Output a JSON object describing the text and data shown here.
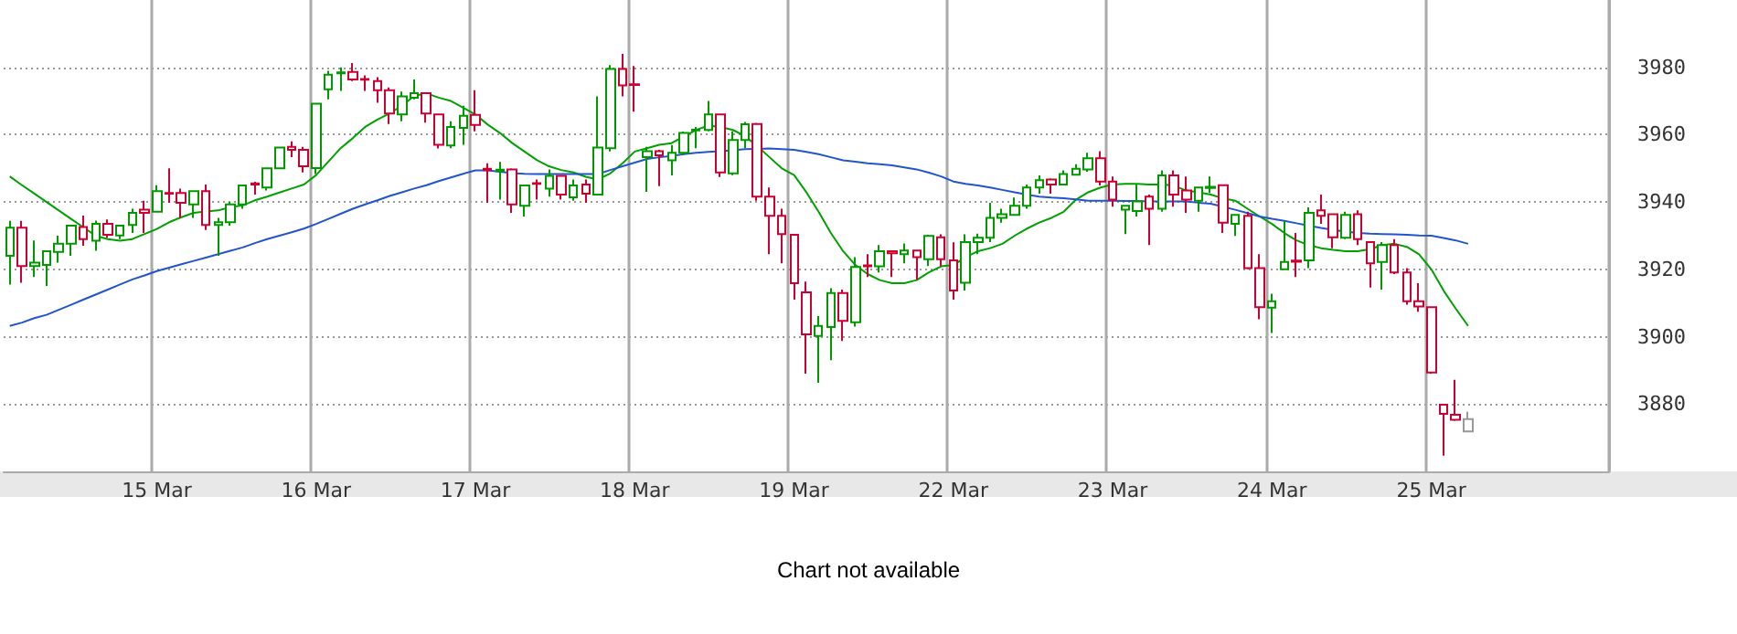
{
  "chart_data": {
    "type": "candlestick",
    "categories": [
      null,
      null,
      null,
      null,
      null,
      null,
      null,
      null,
      null,
      null,
      null,
      null,
      "15 Mar",
      null,
      null,
      null,
      null,
      null,
      null,
      null,
      null,
      null,
      null,
      null,
      null,
      "16 Mar",
      null,
      null,
      null,
      null,
      null,
      null,
      null,
      null,
      null,
      null,
      null,
      null,
      "17 Mar",
      null,
      null,
      null,
      null,
      null,
      null,
      null,
      null,
      null,
      null,
      null,
      null,
      "18 Mar",
      null,
      null,
      null,
      null,
      null,
      null,
      null,
      null,
      null,
      null,
      null,
      null,
      "19 Mar",
      null,
      null,
      null,
      null,
      null,
      null,
      null,
      null,
      null,
      null,
      null,
      null,
      "22 Mar",
      null,
      null,
      null,
      null,
      null,
      null,
      null,
      null,
      null,
      null,
      null,
      null,
      "23 Mar",
      null,
      null,
      null,
      null,
      null,
      null,
      null,
      null,
      null,
      null,
      null,
      null,
      "24 Mar",
      null,
      null,
      null,
      null,
      null,
      null,
      null,
      null,
      null,
      null,
      null,
      null,
      "25 Mar",
      null,
      null,
      null
    ],
    "ohlc": [
      [
        3924,
        3934.4,
        3915.5,
        3932.4
      ],
      [
        3932.4,
        3934.4,
        3916,
        3921
      ],
      [
        3921,
        3928.6,
        3917.7,
        3922
      ],
      [
        3921.3,
        3925.4,
        3915.1,
        3925.4
      ],
      [
        3925.2,
        3930,
        3922,
        3927.6
      ],
      [
        3927.6,
        3933,
        3924,
        3933
      ],
      [
        3932.6,
        3936,
        3927,
        3929
      ],
      [
        3928.5,
        3934.5,
        3925.5,
        3933.5
      ],
      [
        3933.5,
        3934.8,
        3929.4,
        3930.3
      ],
      [
        3930.1,
        3933,
        3929,
        3933
      ],
      [
        3933.2,
        3938,
        3930.8,
        3936.8
      ],
      [
        3937.7,
        3940.4,
        3930.8,
        3936.8
      ],
      [
        3937.1,
        3945,
        3937,
        3943.2
      ],
      [
        3942.7,
        3950,
        3939.8,
        3942.5
      ],
      [
        3942.7,
        3944,
        3935.3,
        3939.8
      ],
      [
        3939.3,
        3943.2,
        3935.3,
        3943.2
      ],
      [
        3943.2,
        3945.2,
        3931.7,
        3933.2
      ],
      [
        3933.2,
        3935.3,
        3924,
        3934
      ],
      [
        3934,
        3940,
        3933,
        3939.3
      ],
      [
        3939.3,
        3945,
        3938,
        3944.9
      ],
      [
        3945.5,
        3946,
        3942.2,
        3945.2
      ],
      [
        3944.3,
        3950,
        3943.4,
        3950
      ],
      [
        3950,
        3956.2,
        3950,
        3956.2
      ],
      [
        3956.4,
        3958,
        3953.3,
        3955.5
      ],
      [
        3955.5,
        3956.4,
        3948.8,
        3950.6
      ],
      [
        3950.1,
        3969.2,
        3948.3,
        3969.2
      ],
      [
        3973.5,
        3979,
        3970.5,
        3977.8
      ],
      [
        3978.2,
        3980,
        3973,
        3978.5
      ],
      [
        3978.6,
        3981.3,
        3975.9,
        3976.4
      ],
      [
        3976.5,
        3977.6,
        3973,
        3976.3
      ],
      [
        3975.9,
        3977.1,
        3969.5,
        3973.2
      ],
      [
        3973.2,
        3974,
        3963.2,
        3966.3
      ],
      [
        3966,
        3972.8,
        3964,
        3971.4
      ],
      [
        3971,
        3976.4,
        3970.5,
        3972.3
      ],
      [
        3972.3,
        3972.3,
        3963.6,
        3966.3
      ],
      [
        3966,
        3966,
        3955.9,
        3957
      ],
      [
        3956.8,
        3964,
        3956,
        3962.3
      ],
      [
        3962,
        3968.6,
        3957,
        3965.6
      ],
      [
        3965.9,
        3973.2,
        3961,
        3962.9
      ],
      [
        3949.9,
        3951.5,
        3939.8,
        3949.5
      ],
      [
        3949.2,
        3951.9,
        3940.7,
        3949.6
      ],
      [
        3949.7,
        3950,
        3936.8,
        3939.3
      ],
      [
        3938.9,
        3945,
        3935.7,
        3944.9
      ],
      [
        3945.6,
        3946.7,
        3940.7,
        3945.4
      ],
      [
        3944,
        3949.7,
        3941.6,
        3947.8
      ],
      [
        3947.8,
        3948,
        3940.7,
        3942.2
      ],
      [
        3941.4,
        3946.7,
        3940.4,
        3944.9
      ],
      [
        3945.2,
        3946.7,
        3939.8,
        3942.5
      ],
      [
        3942.2,
        3971.4,
        3942,
        3956.2
      ],
      [
        3956,
        3980.7,
        3955,
        3979.5
      ],
      [
        3979.5,
        3984,
        3971.4,
        3974.6
      ],
      [
        3975,
        3980.4,
        3966.8,
        3974.8
      ],
      [
        3953.3,
        3956.4,
        3943,
        3955.1
      ],
      [
        3955.1,
        3955.5,
        3944.7,
        3953.9
      ],
      [
        3952.4,
        3956.9,
        3947.9,
        3954.6
      ],
      [
        3954.6,
        3960.9,
        3954,
        3960.5
      ],
      [
        3961.3,
        3962.3,
        3956,
        3961.5
      ],
      [
        3961.4,
        3970,
        3961,
        3966
      ],
      [
        3966,
        3966,
        3947.4,
        3948.8
      ],
      [
        3948.5,
        3961,
        3948,
        3958.4
      ],
      [
        3958.4,
        3963.8,
        3956,
        3963.1
      ],
      [
        3963.2,
        3963.5,
        3940.4,
        3941.6
      ],
      [
        3941.6,
        3944.3,
        3924.5,
        3935.9
      ],
      [
        3935.9,
        3938,
        3921.8,
        3930.5
      ],
      [
        3930.3,
        3930.5,
        3911,
        3915.9
      ],
      [
        3913.2,
        3916.4,
        3889,
        3900.7
      ],
      [
        3900.2,
        3906.1,
        3886.3,
        3903.2
      ],
      [
        3902.9,
        3914.4,
        3893,
        3913
      ],
      [
        3913,
        3914,
        3898.7,
        3904.7
      ],
      [
        3904.3,
        3923.6,
        3903,
        3920.7
      ],
      [
        3921.2,
        3924.5,
        3917.7,
        3920.9
      ],
      [
        3920.9,
        3927.2,
        3919.1,
        3925.4
      ],
      [
        3925.4,
        3925.4,
        3917.7,
        3924.8
      ],
      [
        3924.5,
        3927.7,
        3921.8,
        3925.6
      ],
      [
        3925.6,
        3925.6,
        3916.9,
        3923.6
      ],
      [
        3923,
        3930.3,
        3921,
        3929.9
      ],
      [
        3929.5,
        3930.4,
        3920.9,
        3923
      ],
      [
        3922.7,
        3928,
        3911,
        3913.7
      ],
      [
        3916,
        3930.4,
        3913.7,
        3928.1
      ],
      [
        3928.1,
        3930.6,
        3924.5,
        3929.4
      ],
      [
        3929.4,
        3939.8,
        3928.1,
        3935.3
      ],
      [
        3935.3,
        3938,
        3933.9,
        3936.4
      ],
      [
        3936.2,
        3941.3,
        3936,
        3938.9
      ],
      [
        3938.9,
        3945.2,
        3938,
        3944.3
      ],
      [
        3944.3,
        3947.9,
        3942.5,
        3946.5
      ],
      [
        3946.7,
        3947,
        3942.5,
        3945.2
      ],
      [
        3945.2,
        3949.4,
        3945,
        3948.3
      ],
      [
        3948.1,
        3951.2,
        3947.9,
        3949.9
      ],
      [
        3949.7,
        3954.6,
        3949,
        3953
      ],
      [
        3953,
        3955.1,
        3944.9,
        3946.1
      ],
      [
        3946.1,
        3947.6,
        3938.6,
        3940.7
      ],
      [
        3937.7,
        3939,
        3930.5,
        3938.9
      ],
      [
        3937.3,
        3945.2,
        3935.7,
        3940.2
      ],
      [
        3941.6,
        3942.2,
        3927.2,
        3938
      ],
      [
        3938,
        3949.4,
        3937.1,
        3947.9
      ],
      [
        3947.9,
        3949.4,
        3938.6,
        3942.2
      ],
      [
        3943.4,
        3947.6,
        3936.8,
        3940.7
      ],
      [
        3940.4,
        3944.3,
        3937.1,
        3944.3
      ],
      [
        3944.2,
        3947.6,
        3942.7,
        3944.5
      ],
      [
        3945,
        3945,
        3930.8,
        3933.9
      ],
      [
        3933.5,
        3936.2,
        3929.9,
        3936.2
      ],
      [
        3935.9,
        3937.1,
        3920,
        3920.4
      ],
      [
        3920.4,
        3924.5,
        3905.2,
        3908.8
      ],
      [
        3908.6,
        3912.8,
        3901.1,
        3910.5
      ],
      [
        3920,
        3934.4,
        3920,
        3922.2
      ],
      [
        3922.6,
        3930.8,
        3917.7,
        3922.3
      ],
      [
        3922.7,
        3938.4,
        3920.4,
        3936.8
      ],
      [
        3937.5,
        3942.2,
        3933.5,
        3935.9
      ],
      [
        3936.4,
        3936.4,
        3926.3,
        3929.5
      ],
      [
        3929.4,
        3937.1,
        3929,
        3936.2
      ],
      [
        3936.4,
        3937.5,
        3927.2,
        3929
      ],
      [
        3928.1,
        3928.1,
        3914.6,
        3921.8
      ],
      [
        3922.2,
        3928.1,
        3914,
        3927.2
      ],
      [
        3927.2,
        3929,
        3918.6,
        3919.1
      ],
      [
        3919.1,
        3920.4,
        3909.5,
        3910.5
      ],
      [
        3910.5,
        3915.9,
        3907.4,
        3909
      ],
      [
        3908.8,
        3909,
        3889,
        3889.4
      ],
      [
        3879.8,
        3880,
        3864.7,
        3877.1
      ],
      [
        3876.8,
        3887.2,
        3875,
        3875.3
      ],
      [
        3875.5,
        3877.7,
        3871.9,
        3871.9
      ]
    ],
    "colors": [
      "#009900",
      "#cc0033",
      "#009900",
      "#009900",
      "#009900",
      "#009900",
      "#cc0033",
      "#009900",
      "#cc0033",
      "#009900",
      "#009900",
      "#cc0033",
      "#009900",
      "#cc0033",
      "#cc0033",
      "#009900",
      "#cc0033",
      "#009900",
      "#009900",
      "#009900",
      "#cc0033",
      "#009900",
      "#009900",
      "#cc0033",
      "#cc0033",
      "#009900",
      "#009900",
      "#009900",
      "#cc0033",
      "#cc0033",
      "#cc0033",
      "#cc0033",
      "#009900",
      "#009900",
      "#cc0033",
      "#cc0033",
      "#009900",
      "#009900",
      "#cc0033",
      "#cc0033",
      "#009900",
      "#cc0033",
      "#009900",
      "#cc0033",
      "#009900",
      "#cc0033",
      "#009900",
      "#cc0033",
      "#009900",
      "#009900",
      "#cc0033",
      "#cc0033",
      "#009900",
      "#cc0033",
      "#009900",
      "#009900",
      "#009900",
      "#009900",
      "#cc0033",
      "#009900",
      "#009900",
      "#cc0033",
      "#cc0033",
      "#cc0033",
      "#cc0033",
      "#cc0033",
      "#009900",
      "#009900",
      "#cc0033",
      "#009900",
      "#cc0033",
      "#009900",
      "#cc0033",
      "#009900",
      "#cc0033",
      "#009900",
      "#cc0033",
      "#cc0033",
      "#009900",
      "#009900",
      "#009900",
      "#009900",
      "#009900",
      "#009900",
      "#009900",
      "#cc0033",
      "#009900",
      "#009900",
      "#009900",
      "#cc0033",
      "#cc0033",
      "#009900",
      "#009900",
      "#cc0033",
      "#009900",
      "#cc0033",
      "#cc0033",
      "#009900",
      "#009900",
      "#cc0033",
      "#009900",
      "#cc0033",
      "#cc0033",
      "#009900",
      "#009900",
      "#cc0033",
      "#009900",
      "#cc0033",
      "#cc0033",
      "#009900",
      "#cc0033",
      "#cc0033",
      "#009900",
      "#cc0033",
      "#cc0033",
      "#cc0033",
      "#cc0033",
      "#cc0033",
      "#cc0033",
      "#999999"
    ],
    "series": [
      {
        "type": "line",
        "color": "#00a000",
        "values": [
          3947.6,
          3945,
          3942.5,
          3940,
          3937.5,
          3935,
          3932.5,
          3930,
          3929,
          3928.5,
          3929,
          3930.5,
          3932,
          3934,
          3935.5,
          3936.8,
          3937.2,
          3937.5,
          3938.5,
          3939,
          3940.5,
          3941.6,
          3942.8,
          3944,
          3945.2,
          3948,
          3952,
          3956,
          3959,
          3962.3,
          3964.5,
          3966.3,
          3968.6,
          3971.5,
          3972.3,
          3971,
          3970,
          3968,
          3966,
          3963,
          3960.5,
          3957.5,
          3955,
          3952.5,
          3950.6,
          3949.5,
          3948.8,
          3947.5,
          3946.7,
          3948.5,
          3951.5,
          3955,
          3956,
          3957,
          3957.5,
          3959.5,
          3961.4,
          3962.7,
          3962.3,
          3961.4,
          3959.6,
          3956.6,
          3953.3,
          3950,
          3948,
          3942.9,
          3937.1,
          3930.8,
          3925.4,
          3921.3,
          3918.6,
          3916.8,
          3915.9,
          3915.9,
          3916.8,
          3919.1,
          3920.9,
          3921.3,
          3923.6,
          3925.4,
          3926.3,
          3927.6,
          3930,
          3932.1,
          3933.9,
          3935.3,
          3937.1,
          3940.7,
          3942.9,
          3944.3,
          3945.2,
          3945.4,
          3945.4,
          3945.2,
          3945.2,
          3944.9,
          3943.4,
          3942.9,
          3942.2,
          3941.1,
          3940.4,
          3938,
          3935.7,
          3933.5,
          3930.8,
          3928.6,
          3927.2,
          3926.3,
          3925.8,
          3925.4,
          3925.4,
          3926,
          3927.2,
          3927.6,
          3926.7,
          3924.5,
          3920,
          3913.7,
          3908.3,
          3903.2
        ]
      },
      {
        "type": "line",
        "color": "#2255cc",
        "values": [
          3903.2,
          3904.2,
          3905.5,
          3906.5,
          3908,
          3909.5,
          3911,
          3912.5,
          3914,
          3915.5,
          3917,
          3918.2,
          3919.5,
          3920.5,
          3921.5,
          3922.5,
          3923.5,
          3924.5,
          3925.5,
          3926.5,
          3927.8,
          3929,
          3930,
          3931,
          3932.1,
          3933.5,
          3935,
          3936.5,
          3938,
          3939.3,
          3940.5,
          3941.8,
          3942.9,
          3944,
          3945,
          3946.2,
          3947.3,
          3948.4,
          3949.4,
          3949.4,
          3949,
          3948.6,
          3948.4,
          3948.3,
          3948.3,
          3948.3,
          3948.3,
          3948.3,
          3948.3,
          3949.5,
          3950.6,
          3951.7,
          3952.8,
          3953.3,
          3953.7,
          3954.2,
          3954.6,
          3954.9,
          3955.1,
          3955.4,
          3955.7,
          3955.8,
          3955.9,
          3955.7,
          3955.5,
          3954.9,
          3954.2,
          3953.3,
          3952.4,
          3952,
          3951.5,
          3951.2,
          3950.9,
          3950.3,
          3949.7,
          3948.7,
          3947.6,
          3946.1,
          3945.4,
          3944.9,
          3944.3,
          3943.6,
          3942.9,
          3942.2,
          3941.6,
          3941.3,
          3941.1,
          3940.8,
          3940.4,
          3940.4,
          3940.4,
          3940.3,
          3940.3,
          3940.2,
          3940.2,
          3940.2,
          3940.2,
          3939.8,
          3939.5,
          3938.6,
          3937.7,
          3936.7,
          3935.7,
          3935,
          3934.4,
          3933.7,
          3933,
          3932.3,
          3931.7,
          3931.2,
          3930.8,
          3930.6,
          3930.5,
          3930.4,
          3930.3,
          3930.1,
          3930,
          3929.3,
          3928.6,
          3927.6
        ]
      }
    ],
    "ylim": [
      3860,
      4000
    ],
    "yticks": [
      3880,
      3900,
      3920,
      3940,
      3960,
      3980
    ],
    "grid": true,
    "marker": "none",
    "annotations": [
      "Chart not available"
    ]
  }
}
